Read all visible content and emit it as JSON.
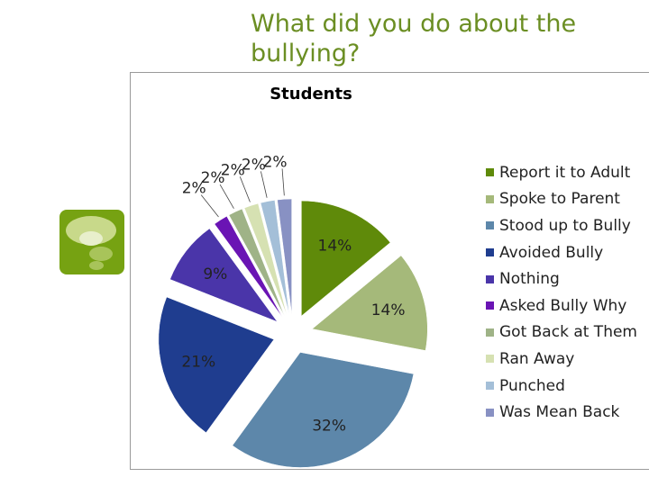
{
  "slide": {
    "title": "What did you do about the bullying?",
    "icon": "speech-bubble-icon"
  },
  "chart_data": {
    "type": "pie",
    "title": "Students",
    "legend_position": "right",
    "style": "exploded",
    "categories": [
      "Report it to Adult",
      "Spoke to Parent",
      "Stood up to Bully",
      "Avoided Bully",
      "Nothing",
      "Asked Bully Why",
      "Got Back at Them",
      "Ran Away",
      "Punched",
      "Was Mean Back"
    ],
    "values": [
      14,
      14,
      32,
      21,
      9,
      2,
      2,
      2,
      2,
      2
    ],
    "labels": [
      "14%",
      "14%",
      "32%",
      "21%",
      "9%",
      "2%",
      "2%",
      "2%",
      "2%",
      "2%"
    ],
    "colors": [
      "#5f8a0a",
      "#a5b97a",
      "#5d87aa",
      "#1f3d8f",
      "#4a35a9",
      "#6a14b4",
      "#9fb387",
      "#d6e1b2",
      "#a4bfd8",
      "#8891c3"
    ]
  }
}
